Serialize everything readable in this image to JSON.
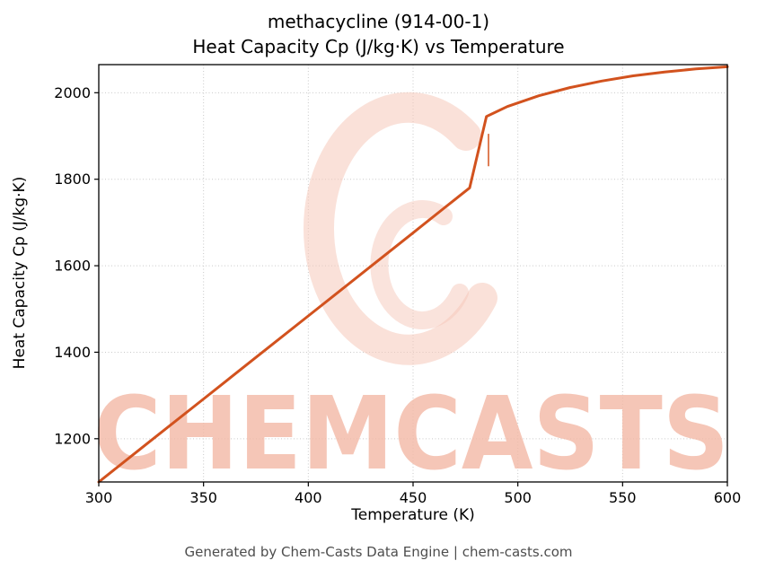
{
  "header": {
    "title_line1": "methacycline (914-00-1)",
    "title_line2": "Heat Capacity Cp (J/kg·K) vs Temperature"
  },
  "footer": {
    "text": "Generated by Chem-Casts Data Engine | chem-casts.com"
  },
  "watermark": {
    "text": "CHEMCASTS",
    "text_color": "#f3b9a6",
    "logo_color": "#f6c8ba",
    "logo_name": "chemcasts-swirl-logo"
  },
  "chart_data": {
    "type": "line",
    "title": "methacycline (914-00-1) Heat Capacity Cp (J/kg·K) vs Temperature",
    "xlabel": "Temperature (K)",
    "ylabel": "Heat Capacity Cp (J/kg·K)",
    "xlim": [
      300,
      600
    ],
    "ylim": [
      1100,
      2065
    ],
    "xticks": [
      300,
      350,
      400,
      450,
      500,
      550,
      600
    ],
    "yticks": [
      1200,
      1400,
      1600,
      1800,
      2000
    ],
    "grid": true,
    "legend": "none",
    "line_color": "#d2521e",
    "grid_color": "#c9c9c9",
    "series": [
      {
        "name": "Heat Capacity Cp",
        "x": [
          300,
          325,
          350,
          375,
          400,
          425,
          450,
          465,
          477,
          485,
          495,
          510,
          525,
          540,
          555,
          570,
          585,
          600
        ],
        "y": [
          1100,
          1196,
          1292,
          1388,
          1484,
          1580,
          1676,
          1734,
          1780,
          1945,
          1968,
          1993,
          2012,
          2027,
          2039,
          2048,
          2055,
          2060
        ]
      }
    ],
    "transition_tick": {
      "x": 486,
      "y0": 1830,
      "y1": 1905
    }
  }
}
